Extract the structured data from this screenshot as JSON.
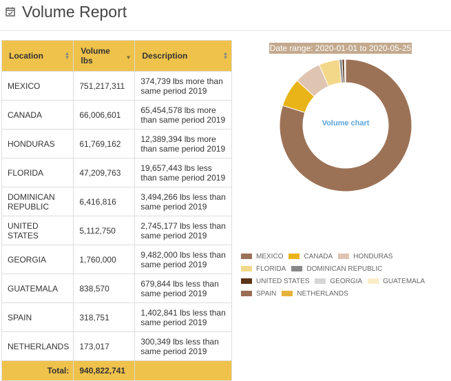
{
  "header": {
    "title": "Volume Report",
    "icon": "calendar-check-icon"
  },
  "table": {
    "columns": [
      {
        "label": "Location"
      },
      {
        "label": "Volume lbs"
      },
      {
        "label": "Description"
      }
    ],
    "rows": [
      {
        "location": "MEXICO",
        "volume": "751,217,311",
        "description": "374,739 lbs more than same period 2019"
      },
      {
        "location": "CANADA",
        "volume": "66,006,601",
        "description": "65,454,578 lbs more than same period 2019"
      },
      {
        "location": "HONDURAS",
        "volume": "61,769,162",
        "description": "12,389,394 lbs more than same period 2019"
      },
      {
        "location": "FLORIDA",
        "volume": "47,209,763",
        "description": "19,657,443 lbs less than same period 2019"
      },
      {
        "location": "DOMINICAN REPUBLIC",
        "volume": "6,416,816",
        "description": "3,494,266 lbs less than same period 2019"
      },
      {
        "location": "UNITED STATES",
        "volume": "5,112,750",
        "description": "2,745,177 lbs less than same period 2019"
      },
      {
        "location": "GEORGIA",
        "volume": "1,760,000",
        "description": "9,482,000 lbs less than same period 2019"
      },
      {
        "location": "GUATEMALA",
        "volume": "838,570",
        "description": "679,844 lbs less than same period 2019"
      },
      {
        "location": "SPAIN",
        "volume": "318,751",
        "description": "1,402,841 lbs less than same period 2019"
      },
      {
        "location": "NETHERLANDS",
        "volume": "173,017",
        "description": "300,349 lbs less than same period 2019"
      }
    ],
    "total": {
      "label": "Total:",
      "value": "940,822,741"
    }
  },
  "chart_data": {
    "type": "pie",
    "subtitle": "Date range: 2020-01-01 to 2020-05-25",
    "center_label": "Volume chart",
    "categories": [
      "MEXICO",
      "CANADA",
      "HONDURAS",
      "FLORIDA",
      "DOMINICAN REPUBLIC",
      "UNITED STATES",
      "GEORGIA",
      "GUATEMALA",
      "SPAIN",
      "NETHERLANDS"
    ],
    "values": [
      751217311,
      66006601,
      61769162,
      47209763,
      6416816,
      5112750,
      1760000,
      838570,
      318751,
      173017
    ],
    "colors": [
      "#9c7257",
      "#e8b418",
      "#dfc4b1",
      "#f4d88a",
      "#888888",
      "#5c3416",
      "#d6d6d6",
      "#fbecc8",
      "#9b6d52",
      "#e6b33a"
    ],
    "legend_position": "bottom"
  }
}
